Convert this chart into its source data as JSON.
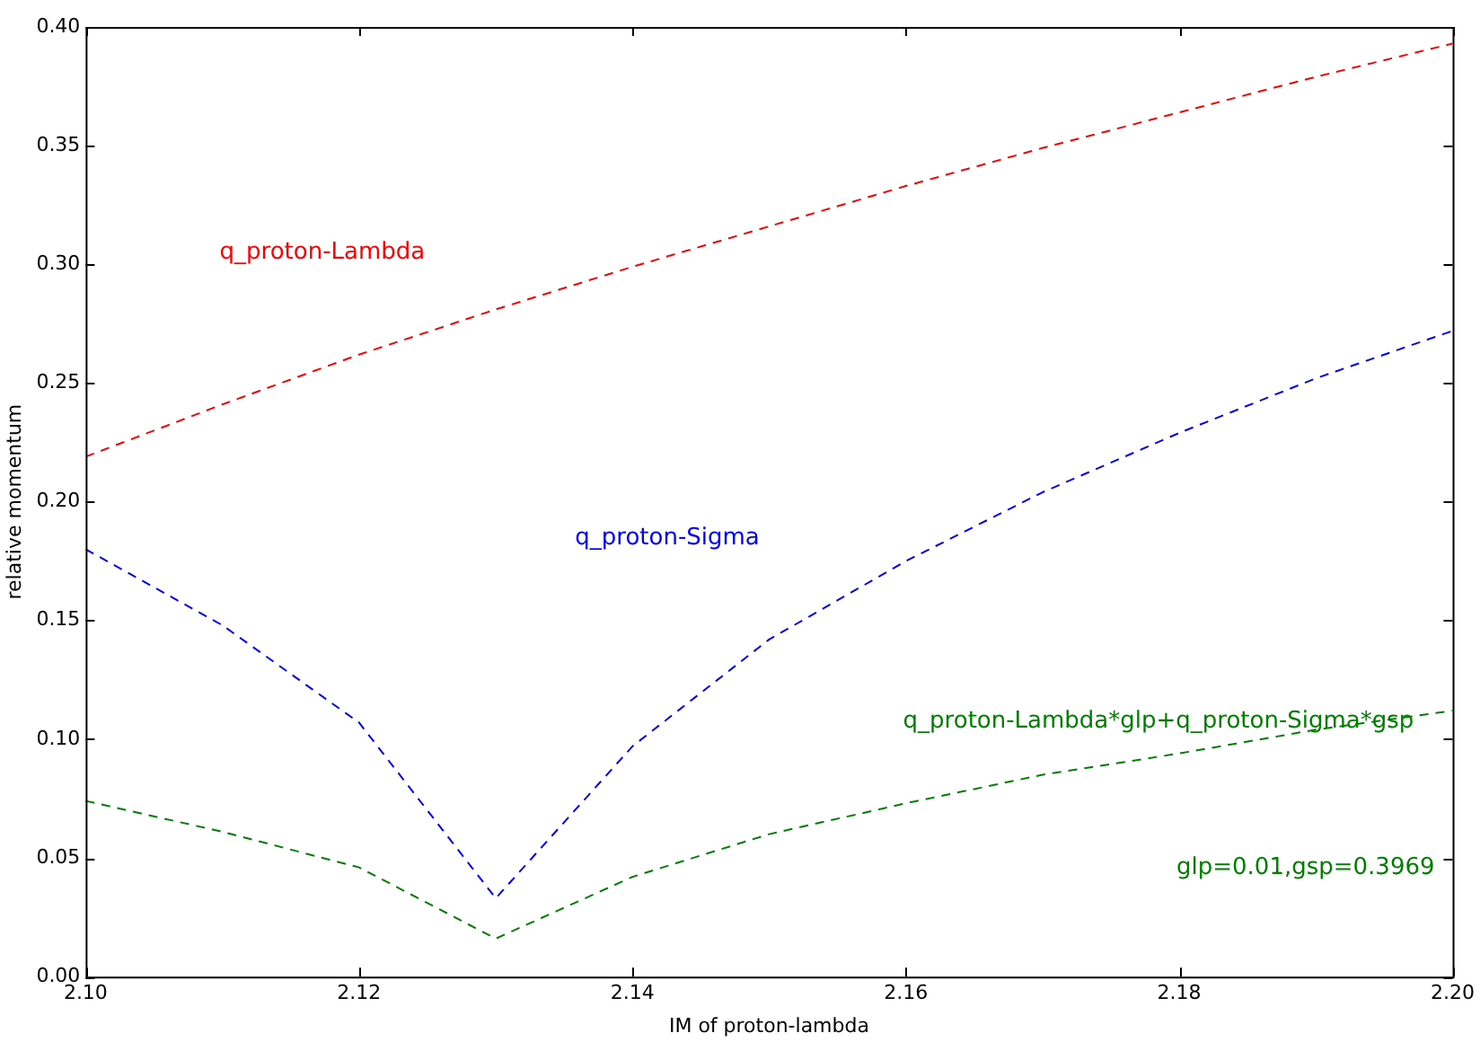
{
  "chart_data": {
    "type": "line",
    "xlabel": "IM of proton-lambda",
    "ylabel": "relative momentum",
    "x": [
      2.1,
      2.11,
      2.12,
      2.13,
      2.14,
      2.15,
      2.16,
      2.17,
      2.18,
      2.19,
      2.2
    ],
    "series": [
      {
        "name": "q_proton-Lambda",
        "color": "#ff0000",
        "values": [
          0.219,
          0.241,
          0.262,
          0.281,
          0.299,
          0.316,
          0.333,
          0.349,
          0.364,
          0.379,
          0.393
        ]
      },
      {
        "name": "q_proton-Sigma",
        "color": "#0000ff",
        "values": [
          0.18,
          0.148,
          0.107,
          0.033,
          0.097,
          0.142,
          0.175,
          0.204,
          0.229,
          0.252,
          0.272
        ]
      },
      {
        "name": "q_proton-Lambda*glp+q_proton-Sigma*gsp",
        "color": "#008000",
        "values": [
          0.074,
          0.061,
          0.046,
          0.016,
          0.042,
          0.06,
          0.073,
          0.085,
          0.094,
          0.104,
          0.112
        ]
      }
    ],
    "annotations": [
      "glp=0.01,gsp=0.3969"
    ],
    "xlim": [
      2.1,
      2.2
    ],
    "ylim": [
      0,
      0.4
    ],
    "xticks": [
      {
        "value": 2.1,
        "label": "2.10"
      },
      {
        "value": 2.12,
        "label": "2.12"
      },
      {
        "value": 2.14,
        "label": "2.14"
      },
      {
        "value": 2.16,
        "label": "2.16"
      },
      {
        "value": 2.18,
        "label": "2.18"
      },
      {
        "value": 2.2,
        "label": "2.20"
      }
    ],
    "yticks": [
      {
        "value": 0,
        "label": "0.00"
      },
      {
        "value": 0.05,
        "label": "0.05"
      },
      {
        "value": 0.1,
        "label": "0.10"
      },
      {
        "value": 0.15,
        "label": "0.15"
      },
      {
        "value": 0.2,
        "label": "0.20"
      },
      {
        "value": 0.25,
        "label": "0.25"
      },
      {
        "value": 0.3,
        "label": "0.30"
      },
      {
        "value": 0.35,
        "label": "0.35"
      },
      {
        "value": 0.4,
        "label": "0.40"
      }
    ],
    "grid": false,
    "legend": false,
    "marker": "none",
    "line_style": "dashed"
  }
}
